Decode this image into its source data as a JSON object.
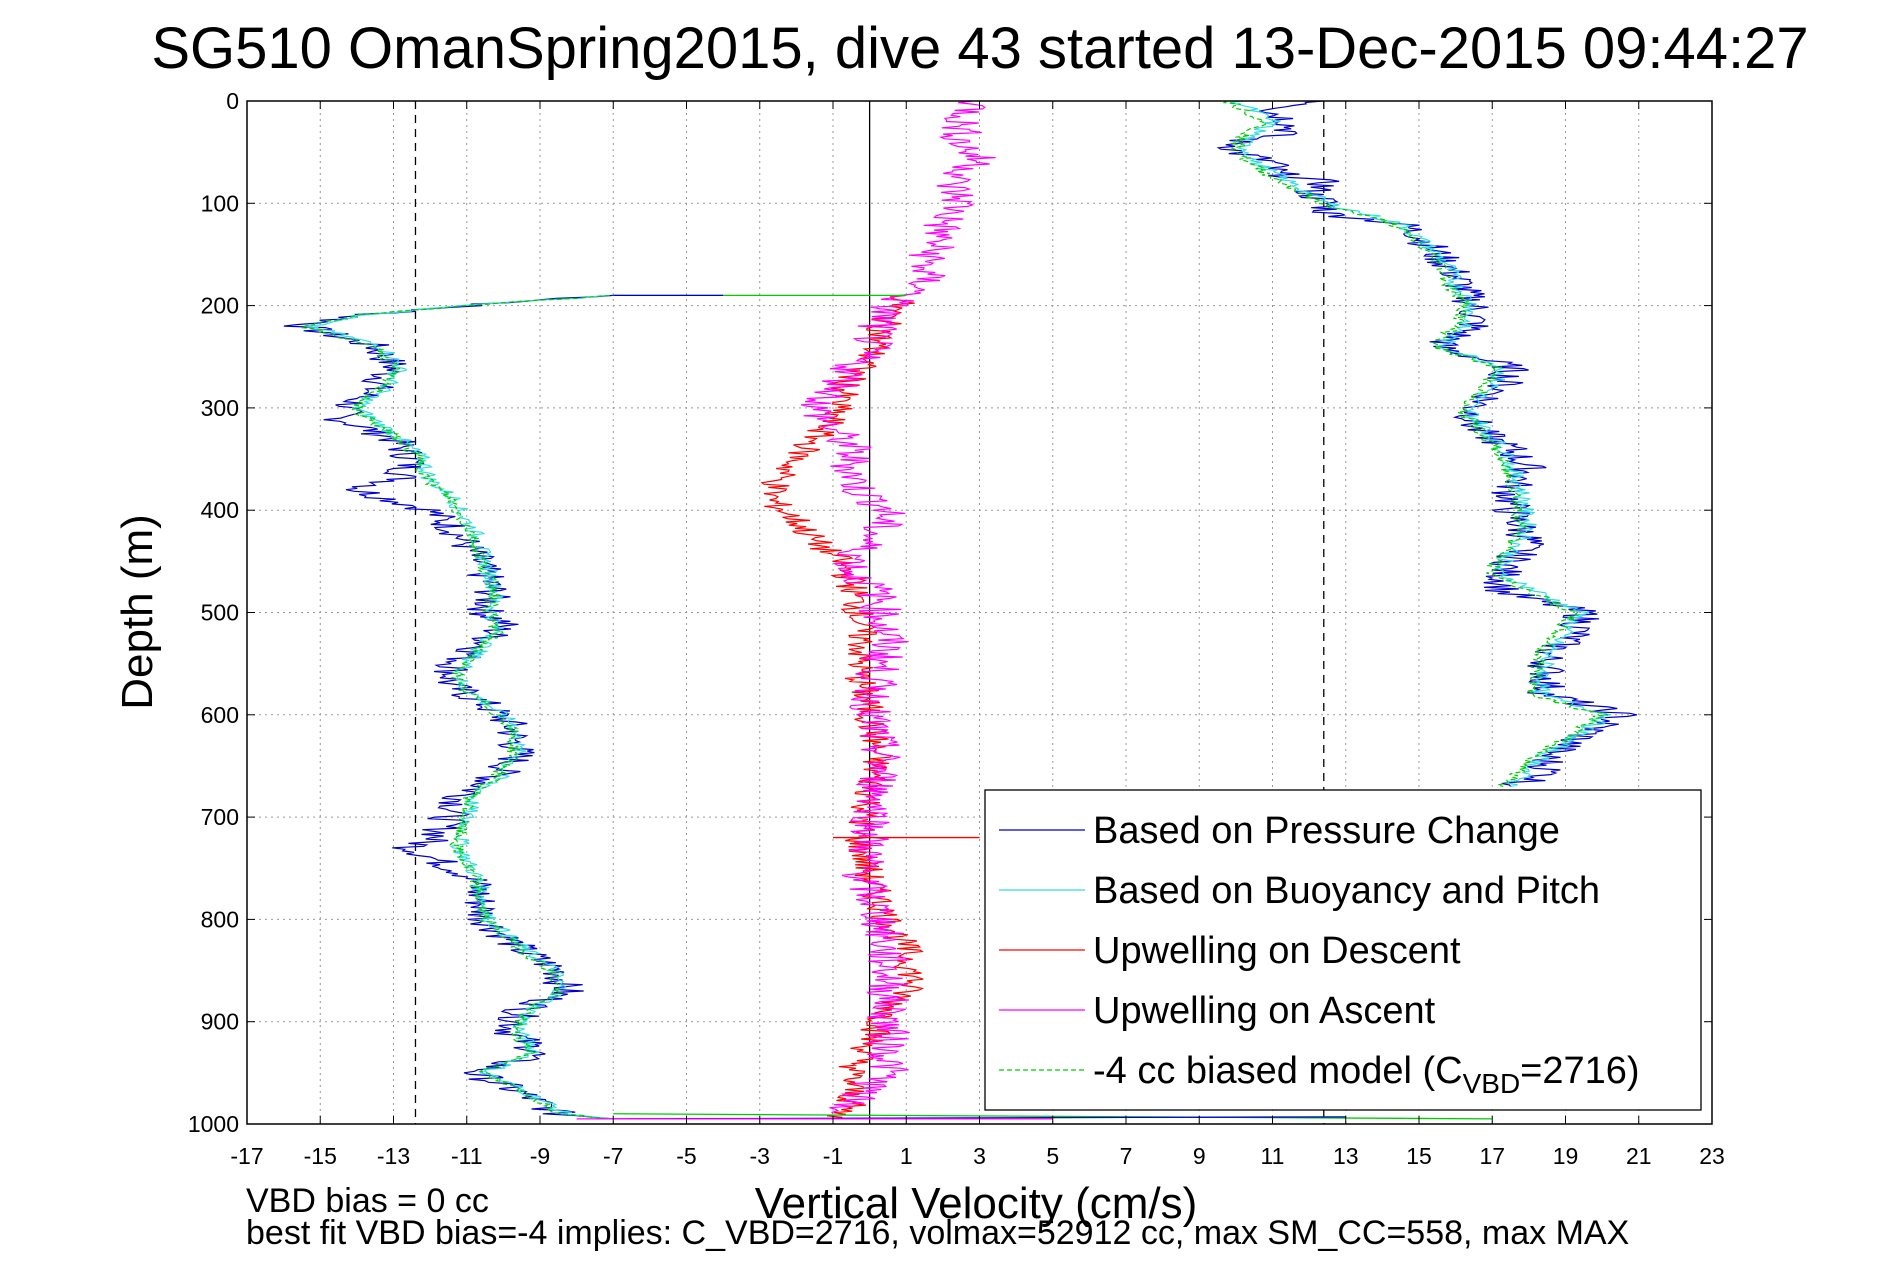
{
  "chart_data": {
    "type": "line",
    "title": "SG510 OmanSpring2015, dive 43 started 13-Dec-2015 09:44:27",
    "xlabel": "Vertical Velocity (cm/s)",
    "ylabel": "Depth (m)",
    "xlim": [
      -17,
      23
    ],
    "ylim": [
      0,
      1000
    ],
    "y_reversed": true,
    "grid": true,
    "xticks": [
      -17,
      -15,
      -13,
      -11,
      -9,
      -7,
      -5,
      -3,
      -1,
      1,
      3,
      5,
      7,
      9,
      11,
      13,
      15,
      17,
      19,
      21,
      23
    ],
    "yticks": [
      0,
      100,
      200,
      300,
      400,
      500,
      600,
      700,
      800,
      900,
      1000
    ],
    "reference_lines": [
      {
        "x": -12.4,
        "style": "dashed"
      },
      {
        "x": 12.4,
        "style": "dashed"
      },
      {
        "x": 0,
        "style": "solid"
      }
    ],
    "legend_position": "bottom-right",
    "series": [
      {
        "name": "Based on Pressure Change",
        "color": "#0000cc",
        "segments": [
          {
            "depth": [
              190,
              200,
              210,
              220,
              240,
              260,
              280,
              300,
              310,
              330,
              350,
              370,
              380,
              400,
              420,
              450,
              480,
              500,
              510,
              530,
              550,
              570,
              590,
              610,
              640,
              660,
              680,
              700,
              720,
              730,
              760,
              800,
              830,
              850,
              870,
              890,
              910,
              930,
              950,
              970,
              990,
              995
            ],
            "velocity": [
              -7,
              -11,
              -14,
              -15.5,
              -13.5,
              -13,
              -13.5,
              -14.3,
              -14.5,
              -13,
              -12.5,
              -12.8,
              -14,
              -12,
              -11.3,
              -10.7,
              -10.3,
              -10.5,
              -10,
              -10.5,
              -11.3,
              -11.5,
              -10.5,
              -9.8,
              -9.6,
              -10.2,
              -11.1,
              -11.5,
              -11.8,
              -12.5,
              -10.8,
              -10.5,
              -9.5,
              -8.5,
              -8.3,
              -9.5,
              -9.8,
              -9,
              -10.8,
              -9.5,
              -8.5,
              -7
            ]
          },
          {
            "depth": [
              0,
              10,
              20,
              30,
              40,
              50,
              60,
              70,
              80,
              90,
              100,
              110,
              120,
              130,
              150,
              170,
              190,
              200,
              220,
              240,
              260,
              280,
              300,
              320,
              340,
              360,
              380,
              400,
              430,
              460,
              480,
              500,
              520,
              540,
              560,
              580,
              600,
              620,
              640,
              660,
              670
            ],
            "velocity": [
              12.5,
              11,
              11.5,
              11.5,
              10,
              10,
              11,
              11,
              12.5,
              12,
              12.5,
              12.5,
              14.5,
              15,
              15.5,
              16,
              16.3,
              16.5,
              16.5,
              15.5,
              17.5,
              17.3,
              16.5,
              16.5,
              17.5,
              18,
              17.5,
              17.5,
              18,
              17.3,
              17.3,
              19.5,
              19.3,
              18.5,
              18.5,
              18.5,
              20.5,
              19.5,
              18.5,
              18.5,
              17.5
            ]
          }
        ]
      },
      {
        "name": "Based on Buoyancy and Pitch",
        "color": "#33dddd",
        "segments": [
          {
            "depth": [
              190,
              200,
              210,
              220,
              240,
              260,
              280,
              300,
              330,
              350,
              370,
              390,
              400,
              420,
              450,
              480,
              500,
              520,
              550,
              570,
              590,
              610,
              640,
              660,
              680,
              700,
              730,
              760,
              800,
              830,
              850,
              870,
              890,
              910,
              930,
              950,
              970,
              990,
              995
            ],
            "velocity": [
              -7,
              -11,
              -14,
              -15.3,
              -13.3,
              -12.8,
              -13.2,
              -14,
              -12.8,
              -12.2,
              -12,
              -11.3,
              -11.2,
              -10.8,
              -10.5,
              -10.2,
              -10.3,
              -10.2,
              -11,
              -11.2,
              -10.4,
              -9.7,
              -9.6,
              -10.1,
              -10.8,
              -11,
              -11.2,
              -10.7,
              -10.4,
              -9.4,
              -8.6,
              -8.4,
              -9.3,
              -9.6,
              -9.1,
              -10.5,
              -9.3,
              -8.3,
              -7
            ]
          },
          {
            "depth": [
              0,
              20,
              40,
              60,
              80,
              100,
              120,
              140,
              160,
              180,
              200,
              220,
              240,
              260,
              280,
              300,
              340,
              380,
              420,
              460,
              500,
              540,
              580,
              600,
              640,
              670
            ],
            "velocity": [
              10,
              11,
              10.2,
              10.5,
              11.5,
              12.5,
              14.5,
              15.2,
              15.8,
              16,
              16.5,
              16.2,
              15.6,
              17.3,
              17,
              16.3,
              17.3,
              17.8,
              18,
              17.1,
              19.4,
              18.5,
              18.3,
              20.2,
              18.4,
              17.5
            ]
          }
        ]
      },
      {
        "name": "Upwelling on Descent",
        "color": "#ff0000",
        "segments": [
          {
            "depth": [
              190,
              210,
              230,
              250,
              270,
              290,
              310,
              330,
              350,
              370,
              390,
              410,
              430,
              450,
              470,
              500,
              530,
              560,
              600,
              640,
              680,
              720,
              760,
              800,
              830,
              860,
              890,
              920,
              950,
              980,
              995
            ],
            "velocity": [
              1,
              0.5,
              0.3,
              0,
              -0.5,
              -0.8,
              -1,
              -1.5,
              -2,
              -2.5,
              -2.7,
              -2,
              -1.5,
              -0.8,
              -0.5,
              -0.3,
              -0.2,
              -0.3,
              0,
              0.2,
              0,
              -0.3,
              0,
              0.5,
              1,
              1.2,
              0.5,
              0,
              -0.5,
              -0.5,
              -1
            ]
          }
        ]
      },
      {
        "name": "Upwelling on Ascent",
        "color": "#ff00ff",
        "segments": [
          {
            "depth": [
              0,
              20,
              40,
              60,
              80,
              100,
              120,
              140,
              160,
              180,
              200,
              220,
              240,
              260,
              280,
              300,
              320,
              340,
              360,
              380,
              400,
              420,
              440,
              460,
              480,
              500,
              530,
              560,
              600,
              640,
              680,
              720,
              760,
              800,
              850,
              900,
              950,
              990
            ],
            "velocity": [
              3,
              2.5,
              2.5,
              3,
              2.2,
              2.5,
              2,
              1.8,
              1.5,
              1.5,
              0.5,
              0.2,
              0,
              -0.5,
              -0.8,
              -1.5,
              -1,
              -0.5,
              -0.5,
              -0.3,
              0.5,
              0.2,
              -0.3,
              -0.5,
              0.2,
              0.3,
              0.5,
              0.2,
              0,
              0.3,
              0.2,
              0,
              -0.2,
              0.3,
              0.5,
              0.5,
              0.5,
              -1
            ]
          }
        ]
      },
      {
        "name": "-4 cc biased model (C",
        "name_sub": "VBD",
        "name_suffix": "=2716)",
        "color": "#00cc00",
        "dashed": true,
        "segments": [
          {
            "depth": [
              190,
              200,
              210,
              220,
              240,
              260,
              280,
              300,
              330,
              350,
              370,
              390,
              400,
              420,
              450,
              480,
              500,
              520,
              550,
              570,
              590,
              610,
              640,
              660,
              680,
              700,
              730,
              760,
              800,
              830,
              850,
              870,
              890,
              910,
              930,
              950,
              970,
              990,
              995
            ],
            "velocity": [
              -7,
              -11,
              -14.2,
              -15.5,
              -13.5,
              -13,
              -13.3,
              -14.1,
              -12.9,
              -12.3,
              -12.1,
              -11.4,
              -11.3,
              -10.9,
              -10.6,
              -10.2,
              -10.4,
              -10.2,
              -11.1,
              -11.3,
              -10.5,
              -9.8,
              -9.7,
              -10.2,
              -10.9,
              -11.1,
              -11.3,
              -10.8,
              -10.5,
              -9.5,
              -8.7,
              -8.5,
              -9.4,
              -9.7,
              -9.2,
              -10.6,
              -9.4,
              -8.4,
              -7
            ]
          },
          {
            "depth": [
              0,
              20,
              40,
              60,
              80,
              100,
              120,
              140,
              160,
              180,
              200,
              220,
              240,
              260,
              280,
              300,
              340,
              380,
              420,
              460,
              500,
              540,
              580,
              600,
              640,
              670
            ],
            "velocity": [
              9.8,
              10.8,
              10,
              10.3,
              11.3,
              12.3,
              14.3,
              15,
              15.6,
              15.8,
              16.3,
              16,
              15.4,
              17.1,
              16.8,
              16.1,
              17.1,
              17.6,
              17.8,
              16.9,
              19.2,
              18.3,
              18.1,
              20,
              18.2,
              17.3
            ]
          }
        ]
      }
    ],
    "connectors": [
      {
        "color": "#00cc00",
        "depth": [
          190,
          190
        ],
        "velocity": [
          -7,
          1
        ]
      },
      {
        "color": "#0000cc",
        "depth": [
          190,
          190
        ],
        "velocity": [
          -7,
          -4
        ]
      },
      {
        "color": "#00cc00",
        "depth": [
          990,
          995
        ],
        "velocity": [
          -7,
          17
        ]
      },
      {
        "color": "#0000cc",
        "depth": [
          995,
          993
        ],
        "velocity": [
          -7,
          13
        ]
      },
      {
        "color": "#ff00ff",
        "depth": [
          995,
          995
        ],
        "velocity": [
          -8,
          5
        ]
      },
      {
        "color": "#ff0000",
        "depth": [
          720,
          720
        ],
        "velocity": [
          -1,
          3
        ]
      }
    ]
  },
  "footer": {
    "line1": "VBD bias = 0 cc",
    "line2": "best fit VBD bias=-4 implies: C_VBD=2716, volmax=52912 cc, max SM_CC=558, max MAX"
  }
}
